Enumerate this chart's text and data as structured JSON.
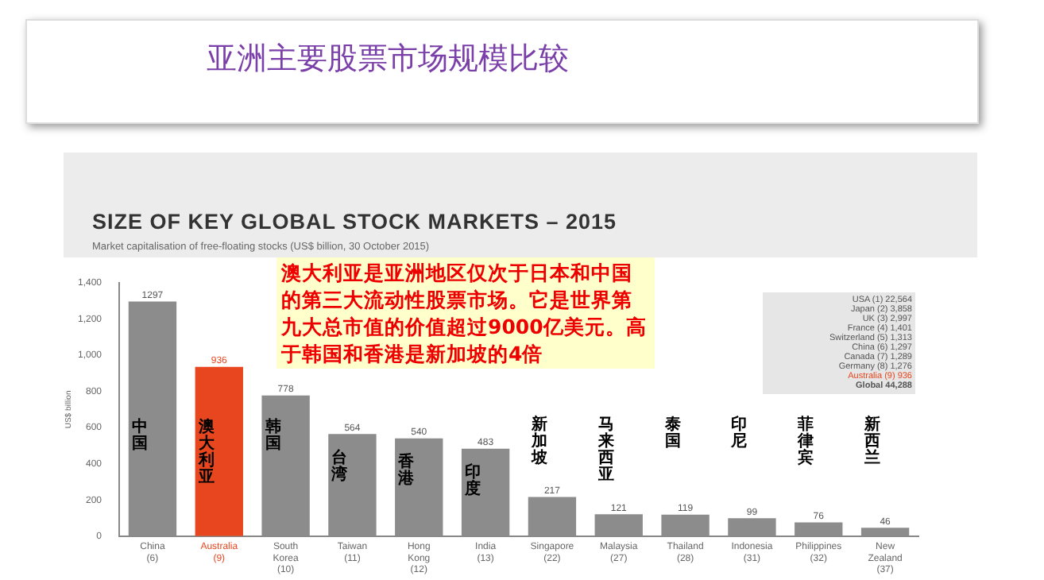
{
  "chart_data": {
    "type": "bar",
    "title": "SIZE OF KEY GLOBAL STOCK MARKETS – 2015",
    "subtitle": "Market capitalisation of free-floating stocks (US$ billion, 30 October 2015)",
    "ylabel": "US$ billion",
    "categories": [
      "China (6)",
      "Australia (9)",
      "South Korea (10)",
      "Taiwan (11)",
      "Hong Kong (12)",
      "India (13)",
      "Singapore (22)",
      "Malaysia (27)",
      "Thailand (28)",
      "Indonesia (31)",
      "Philippines (32)",
      "New Zealand (37)"
    ],
    "values": [
      1297,
      936,
      778,
      564,
      540,
      483,
      217,
      121,
      119,
      99,
      76,
      46
    ],
    "colors": [
      "#8c8c8c",
      "#e8461e",
      "#8c8c8c",
      "#8c8c8c",
      "#8c8c8c",
      "#8c8c8c",
      "#8c8c8c",
      "#8c8c8c",
      "#8c8c8c",
      "#8c8c8c",
      "#8c8c8c",
      "#8c8c8c"
    ],
    "data_labels": true,
    "ylim": [
      0,
      1400
    ],
    "yticks": [
      0,
      200,
      400,
      600,
      800,
      {
        "value": 1000,
        "label": "1,000"
      },
      {
        "value": 1200,
        "label": "1,200"
      },
      {
        "value": 1400,
        "label": "1,400"
      }
    ],
    "grid": false,
    "legend": false,
    "annotations": [
      "亚洲主要股票市场规模比较",
      "澳大利亚是亚洲地区仅次于日本和中国的第三大流动性股票市场。它是世界第九大总市值的价值超过9000亿美元。高于韩国和香港是新加坡的4倍",
      "USA (1) 22,564",
      "Japan (2) 3,858",
      "UK (3) 2,997",
      "France (4) 1,401",
      "Switzerland (5) 1,313",
      "China (6) 1,297",
      "Canada (7) 1,289",
      "Germany (8) 1,276",
      "Australia (9) 936",
      "Global 44,288",
      "中国",
      "澳大利亚",
      "韩国",
      "台湾",
      "香港",
      "印度",
      "新加坡",
      "马来西亚",
      "泰国",
      "印尼",
      "菲律宾",
      "新西兰"
    ]
  }
}
